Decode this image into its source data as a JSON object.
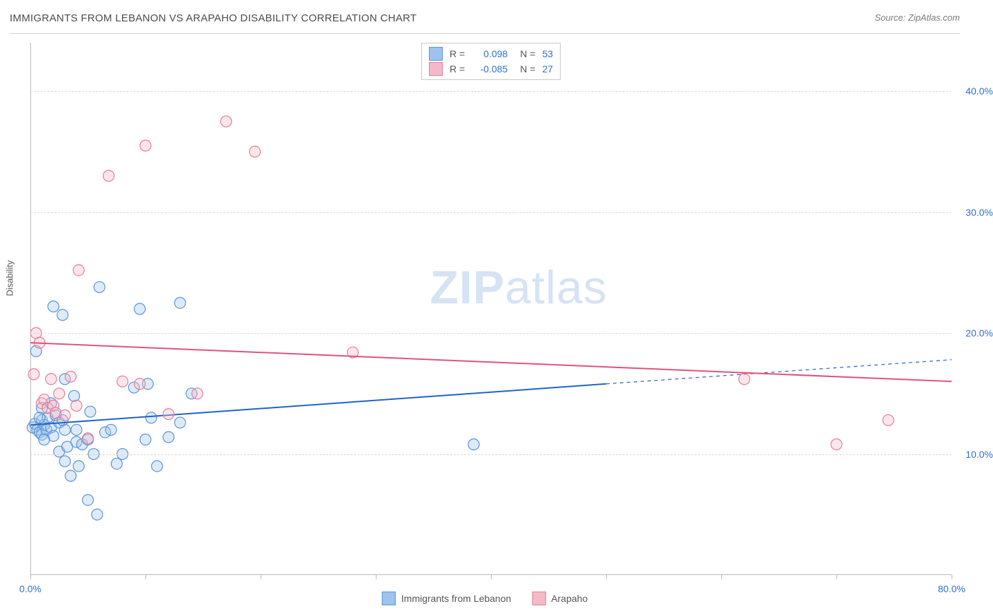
{
  "header": {
    "title": "IMMIGRANTS FROM LEBANON VS ARAPAHO DISABILITY CORRELATION CHART",
    "source_prefix": "Source: ",
    "source_name": "ZipAtlas.com"
  },
  "chart": {
    "type": "scatter",
    "y_axis_label": "Disability",
    "xlim": [
      0,
      80
    ],
    "ylim": [
      0,
      44
    ],
    "x_tick_positions": [
      0,
      10,
      20,
      30,
      40,
      50,
      60,
      70,
      80
    ],
    "x_tick_labels": {
      "0": "0.0%",
      "80": "80.0%"
    },
    "x_tick_color": "#2f6fd0",
    "y_grid_positions": [
      10,
      20,
      30,
      40
    ],
    "y_tick_labels": {
      "10": "10.0%",
      "20": "20.0%",
      "30": "30.0%",
      "40": "40.0%"
    },
    "y_tick_color": "#2f6fd0",
    "grid_color": "#d8d8d8",
    "axis_color": "#b8b8b8",
    "background_color": "#ffffff",
    "marker_radius": 8,
    "marker_stroke_width": 1.2,
    "marker_fill_opacity": 0.35,
    "line_width": 2,
    "watermark": {
      "text_bold": "ZIP",
      "text_light": "atlas",
      "color": "#d6e3f4"
    },
    "series": [
      {
        "id": "lebanon",
        "label": "Immigrants from Lebanon",
        "color_fill": "#9ec3ec",
        "color_stroke": "#5a94d8",
        "R": "0.098",
        "N": "53",
        "trend": {
          "x1": 0,
          "y1": 12.4,
          "x2_solid": 50,
          "y2_solid": 15.8,
          "x2_dash": 80,
          "y2_dash": 17.8,
          "color": "#1e62c8"
        },
        "points": [
          [
            0.2,
            12.2
          ],
          [
            0.4,
            12.5
          ],
          [
            0.6,
            12.0
          ],
          [
            0.8,
            11.8
          ],
          [
            1.0,
            12.8
          ],
          [
            1.0,
            11.6
          ],
          [
            1.2,
            12.4
          ],
          [
            1.4,
            12.0
          ],
          [
            1.5,
            13.0
          ],
          [
            1.8,
            12.2
          ],
          [
            2.0,
            11.5
          ],
          [
            2.0,
            22.2
          ],
          [
            2.2,
            13.2
          ],
          [
            2.5,
            12.6
          ],
          [
            2.5,
            10.2
          ],
          [
            2.8,
            21.5
          ],
          [
            3.0,
            16.2
          ],
          [
            3.0,
            9.4
          ],
          [
            3.0,
            12.0
          ],
          [
            3.2,
            10.6
          ],
          [
            3.5,
            8.2
          ],
          [
            3.8,
            14.8
          ],
          [
            4.0,
            12.0
          ],
          [
            4.0,
            11.0
          ],
          [
            4.2,
            9.0
          ],
          [
            4.5,
            10.8
          ],
          [
            5.0,
            11.2
          ],
          [
            5.0,
            6.2
          ],
          [
            5.2,
            13.5
          ],
          [
            5.5,
            10.0
          ],
          [
            5.8,
            5.0
          ],
          [
            6.0,
            23.8
          ],
          [
            6.5,
            11.8
          ],
          [
            7.0,
            12.0
          ],
          [
            7.5,
            9.2
          ],
          [
            8.0,
            10.0
          ],
          [
            9.0,
            15.5
          ],
          [
            9.5,
            22.0
          ],
          [
            10.0,
            11.2
          ],
          [
            10.2,
            15.8
          ],
          [
            10.5,
            13.0
          ],
          [
            11.0,
            9.0
          ],
          [
            12.0,
            11.4
          ],
          [
            13.0,
            22.5
          ],
          [
            13.0,
            12.6
          ],
          [
            14.0,
            15.0
          ],
          [
            38.5,
            10.8
          ],
          [
            1.0,
            13.8
          ],
          [
            0.5,
            18.5
          ],
          [
            1.8,
            14.2
          ],
          [
            0.8,
            13.0
          ],
          [
            1.2,
            11.2
          ],
          [
            2.8,
            12.8
          ]
        ]
      },
      {
        "id": "arapaho",
        "label": "Arapaho",
        "color_fill": "#f4b9c7",
        "color_stroke": "#e77b97",
        "R": "-0.085",
        "N": "27",
        "trend": {
          "x1": 0,
          "y1": 19.2,
          "x2_solid": 80,
          "y2_solid": 16.0,
          "x2_dash": 80,
          "y2_dash": 16.0,
          "color": "#e0527a"
        },
        "points": [
          [
            0.3,
            16.6
          ],
          [
            0.5,
            20.0
          ],
          [
            0.8,
            19.2
          ],
          [
            1.0,
            14.2
          ],
          [
            1.2,
            14.5
          ],
          [
            1.5,
            13.8
          ],
          [
            1.8,
            16.2
          ],
          [
            2.0,
            14.0
          ],
          [
            2.2,
            13.4
          ],
          [
            2.5,
            15.0
          ],
          [
            3.0,
            13.2
          ],
          [
            3.5,
            16.4
          ],
          [
            4.0,
            14.0
          ],
          [
            4.2,
            25.2
          ],
          [
            5.0,
            11.3
          ],
          [
            6.8,
            33.0
          ],
          [
            8.0,
            16.0
          ],
          [
            9.5,
            15.8
          ],
          [
            10.0,
            35.5
          ],
          [
            12.0,
            13.3
          ],
          [
            14.5,
            15.0
          ],
          [
            17.0,
            37.5
          ],
          [
            19.5,
            35.0
          ],
          [
            28.0,
            18.4
          ],
          [
            62.0,
            16.2
          ],
          [
            70.0,
            10.8
          ],
          [
            74.5,
            12.8
          ]
        ]
      }
    ]
  },
  "legend_top": {
    "r_label": "R =",
    "n_label": "N =",
    "value_color": "#2f6fd0",
    "label_color": "#555555"
  },
  "legend_bottom": {
    "label_color": "#555555"
  }
}
